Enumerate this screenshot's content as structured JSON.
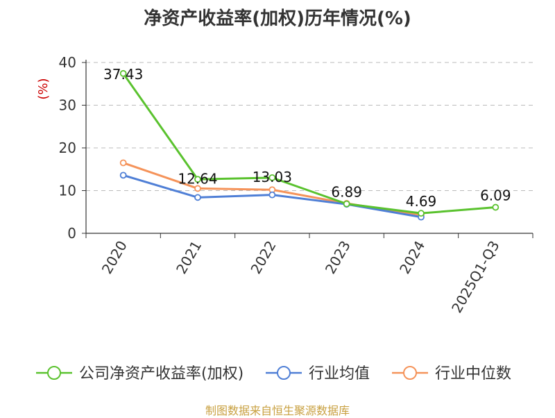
{
  "chart_data": {
    "type": "line",
    "title": "净资产收益率(加权)历年情况(%)",
    "ylabel": "(%)",
    "xlabel": "",
    "categories": [
      "2020",
      "2021",
      "2022",
      "2023",
      "2024",
      "2025Q1-Q3"
    ],
    "ylim": [
      0,
      40
    ],
    "yticks": [
      0,
      10,
      20,
      30,
      40
    ],
    "grid": true,
    "legend_position": "bottom",
    "series": [
      {
        "name": "公司净资产收益率(加权)",
        "color": "#5ac22e",
        "values": [
          37.43,
          12.64,
          13.03,
          6.89,
          4.69,
          6.09
        ],
        "labels": [
          "37.43",
          "12.64",
          "13.03",
          "6.89",
          "4.69",
          "6.09"
        ]
      },
      {
        "name": "行业均值",
        "color": "#4f7fd6",
        "values": [
          13.6,
          8.4,
          9.0,
          6.8,
          3.8,
          null
        ]
      },
      {
        "name": "行业中位数",
        "color": "#f5935a",
        "values": [
          16.5,
          10.5,
          10.2,
          7.0,
          4.3,
          null
        ]
      }
    ]
  },
  "source_note": "制图数据来自恒生聚源数据库",
  "colors": {
    "grid": "#bbbbbb",
    "axis": "#333333",
    "ylabel": "#cc0000"
  }
}
